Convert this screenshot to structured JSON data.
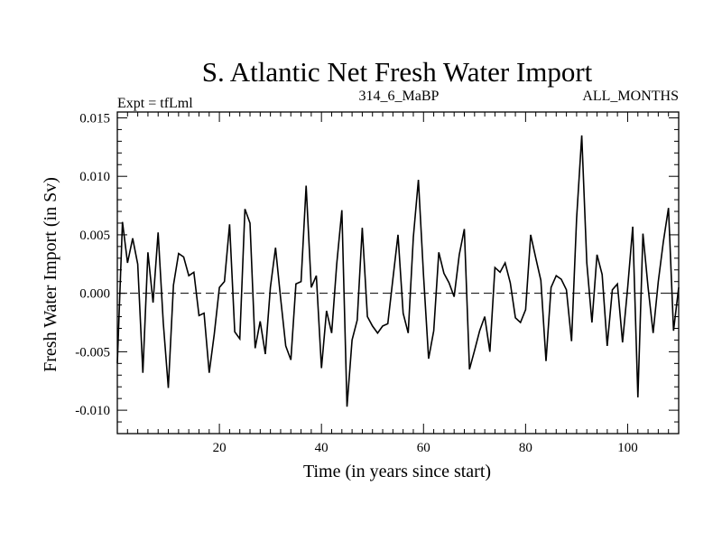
{
  "chart_data": {
    "type": "line",
    "title": "S. Atlantic Net Fresh Water Import",
    "subtitle_left": "Expt = tfLml",
    "subtitle_center": "314_6_MaBP",
    "subtitle_right": "ALL_MONTHS",
    "xlabel": "Time (in years since start)",
    "ylabel": "Fresh Water Import (in Sv)",
    "xlim": [
      0,
      110
    ],
    "ylim": [
      -0.012,
      0.0155
    ],
    "xticks": [
      20,
      40,
      60,
      80,
      100
    ],
    "xtick_labels": [
      "20",
      "40",
      "60",
      "80",
      "100"
    ],
    "yticks": [
      -0.01,
      -0.005,
      0.0,
      0.005,
      0.01,
      0.015
    ],
    "ytick_labels": [
      "-0.010",
      "-0.005",
      "0.000",
      "0.005",
      "0.010",
      "0.015"
    ],
    "zero_line": "dashed",
    "grid": false,
    "series": [
      {
        "name": "net fresh water import",
        "x": [
          0,
          1,
          2,
          3,
          4,
          5,
          6,
          7,
          8,
          9,
          10,
          11,
          12,
          13,
          14,
          15,
          16,
          17,
          18,
          19,
          20,
          21,
          22,
          23,
          24,
          25,
          26,
          27,
          28,
          29,
          30,
          31,
          32,
          33,
          34,
          35,
          36,
          37,
          38,
          39,
          40,
          41,
          42,
          43,
          44,
          45,
          46,
          47,
          48,
          49,
          50,
          51,
          52,
          53,
          54,
          55,
          56,
          57,
          58,
          59,
          60,
          61,
          62,
          63,
          64,
          65,
          66,
          67,
          68,
          69,
          70,
          71,
          72,
          73,
          74,
          75,
          76,
          77,
          78,
          79,
          80,
          81,
          82,
          83,
          84,
          85,
          86,
          87,
          88,
          89,
          90,
          91,
          92,
          93,
          94,
          95,
          96,
          97,
          98,
          99,
          100,
          101,
          102,
          103,
          104,
          105,
          106,
          107,
          108,
          109,
          110
        ],
        "values": [
          -0.006,
          0.0061,
          0.0026,
          0.0047,
          0.0025,
          -0.0068,
          0.0035,
          -0.0008,
          0.0052,
          -0.0025,
          -0.0081,
          0.0007,
          0.0034,
          0.0031,
          0.0015,
          0.0018,
          -0.0019,
          -0.0017,
          -0.0068,
          -0.0035,
          0.0005,
          0.001,
          0.0059,
          -0.0033,
          -0.0039,
          0.0072,
          0.006,
          -0.0047,
          -0.0024,
          -0.0052,
          0.0005,
          0.0039,
          -0.0004,
          -0.0045,
          -0.0057,
          0.0008,
          0.001,
          0.0092,
          0.0005,
          0.0015,
          -0.0064,
          -0.0015,
          -0.0034,
          0.0025,
          0.0071,
          -0.0097,
          -0.004,
          -0.0023,
          0.0056,
          -0.002,
          -0.0028,
          -0.0034,
          -0.0028,
          -0.0026,
          0.0012,
          0.005,
          -0.0017,
          -0.0034,
          0.0048,
          0.0097,
          0.0015,
          -0.0056,
          -0.0032,
          0.0035,
          0.0017,
          0.0009,
          -0.0003,
          0.0033,
          0.0055,
          -0.0065,
          -0.0049,
          -0.0032,
          -0.002,
          -0.005,
          0.0022,
          0.0018,
          0.0026,
          0.0009,
          -0.0021,
          -0.0025,
          -0.0014,
          0.005,
          0.003,
          0.0011,
          -0.0058,
          0.0005,
          0.0015,
          0.0012,
          0.0003,
          -0.0041,
          0.0064,
          0.0135,
          0.0026,
          -0.0025,
          0.0033,
          0.0016,
          -0.0045,
          0.0003,
          0.0008,
          -0.0042,
          0.0005,
          0.0057,
          -0.0089,
          0.0051,
          0.0005,
          -0.0034,
          0.001,
          0.0044,
          0.0073,
          -0.0032,
          0.0005
        ]
      }
    ]
  }
}
